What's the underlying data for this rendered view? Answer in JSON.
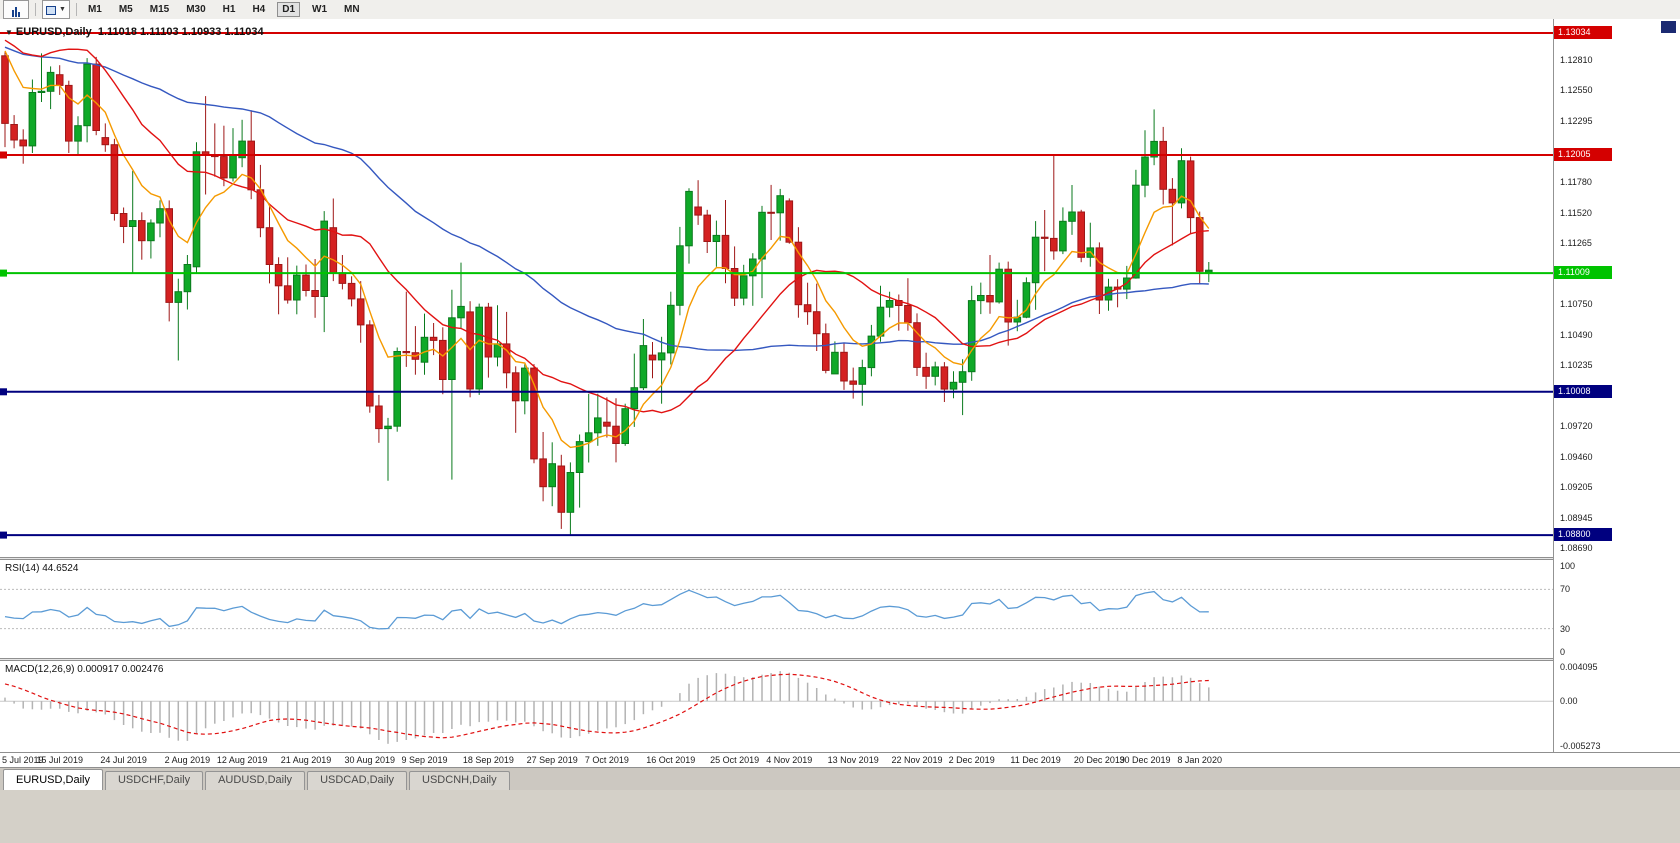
{
  "toolbar": {
    "icons": [
      "chart-window",
      "chart-style-dropdown"
    ],
    "timeframes": [
      "M1",
      "M5",
      "M15",
      "M30",
      "H1",
      "H4",
      "D1",
      "W1",
      "MN"
    ],
    "active_timeframe": "D1"
  },
  "chart": {
    "type": "candlestick",
    "title": "EURUSD,Daily",
    "ohlc": "1.11018 1.11103 1.10933 1.11034",
    "price_range": {
      "top": 1.13152,
      "bottom": 1.08615
    },
    "ticks": [
      "1.12810",
      "1.12550",
      "1.12295",
      "1.11780",
      "1.11520",
      "1.11265",
      "1.10750",
      "1.10490",
      "1.10235",
      "1.09720",
      "1.09460",
      "1.09205",
      "1.08945",
      "1.08690"
    ],
    "levels": [
      {
        "price": 1.13034,
        "label": "1.13034",
        "color": "#d40000",
        "handle": false
      },
      {
        "price": 1.12005,
        "label": "1.12005",
        "color": "#d40000"
      },
      {
        "price": 1.11009,
        "label": "1.11009",
        "color": "#00c300"
      },
      {
        "price": 1.10008,
        "label": "1.10008",
        "color": "#00007f"
      },
      {
        "price": 1.088,
        "label": "1.08800",
        "color": "#00007f"
      }
    ],
    "colors": {
      "bull": "#0fa928",
      "bull_border": "#0a7a1d",
      "bear": "#d42121",
      "bear_border": "#9e1717",
      "ma_fast": "#f59a00",
      "ma_mid": "#e11212",
      "ma_slow": "#3558c0"
    },
    "ma_periods": {
      "fast": 8,
      "mid": 20,
      "slow": 50
    },
    "history_closes": [
      1.12522,
      1.12532,
      1.12222,
      1.12762,
      1.13342,
      1.13122,
      1.13262,
      1.12882,
      1.12772,
      1.12072,
      1.12182,
      1.11932,
      1.12272,
      1.12942,
      1.13692,
      1.13992,
      1.13652,
      1.13702,
      1.13672,
      1.13732,
      1.12852,
      1.12852,
      1.12782,
      1.12832
    ],
    "candles": [
      [
        1.12842,
        1.12872,
        1.12072,
        1.12272
      ],
      [
        1.12262,
        1.12342,
        1.12062,
        1.12132
      ],
      [
        1.12132,
        1.12222,
        1.11932,
        1.12082
      ],
      [
        1.12082,
        1.12642,
        1.12022,
        1.12532
      ],
      [
        1.12532,
        1.12862,
        1.12452,
        1.12542
      ],
      [
        1.12542,
        1.12752,
        1.12392,
        1.12702
      ],
      [
        1.12682,
        1.12762,
        1.12512,
        1.12592
      ],
      [
        1.12592,
        1.12632,
        1.12022,
        1.12122
      ],
      [
        1.12122,
        1.12332,
        1.12012,
        1.12252
      ],
      [
        1.12252,
        1.12822,
        1.12112,
        1.12772
      ],
      [
        1.12772,
        1.12832,
        1.12172,
        1.12212
      ],
      [
        1.12152,
        1.12272,
        1.12032,
        1.12092
      ],
      [
        1.12092,
        1.12142,
        1.11452,
        1.11512
      ],
      [
        1.11512,
        1.11562,
        1.11262,
        1.11402
      ],
      [
        1.11402,
        1.11872,
        1.11012,
        1.11452
      ],
      [
        1.11452,
        1.11522,
        1.11122,
        1.11282
      ],
      [
        1.11282,
        1.11462,
        1.11132,
        1.11432
      ],
      [
        1.11432,
        1.11622,
        1.11312,
        1.11552
      ],
      [
        1.11552,
        1.11622,
        1.10602,
        1.10762
      ],
      [
        1.10762,
        1.10962,
        1.10272,
        1.10852
      ],
      [
        1.10852,
        1.11162,
        1.10702,
        1.11082
      ],
      [
        1.11062,
        1.12112,
        1.11012,
        1.12032
      ],
      [
        1.12032,
        1.12502,
        1.11672,
        1.12002
      ],
      [
        1.12002,
        1.12272,
        1.11822,
        1.11992
      ],
      [
        1.11992,
        1.12252,
        1.11742,
        1.11812
      ],
      [
        1.11812,
        1.12232,
        1.11782,
        1.12002
      ],
      [
        1.11982,
        1.12302,
        1.11902,
        1.12122
      ],
      [
        1.12122,
        1.12382,
        1.11632,
        1.11712
      ],
      [
        1.11712,
        1.11922,
        1.11312,
        1.11392
      ],
      [
        1.11392,
        1.11582,
        1.10922,
        1.11082
      ],
      [
        1.11082,
        1.11142,
        1.10662,
        1.10902
      ],
      [
        1.10902,
        1.11142,
        1.10752,
        1.10782
      ],
      [
        1.10782,
        1.11072,
        1.10662,
        1.10992
      ],
      [
        1.10992,
        1.11082,
        1.10812,
        1.10862
      ],
      [
        1.10862,
        1.11128,
        1.10632,
        1.10812
      ],
      [
        1.10812,
        1.11532,
        1.10512,
        1.11448
      ],
      [
        1.11392,
        1.11638,
        1.10942,
        1.11012
      ],
      [
        1.11012,
        1.11162,
        1.10872,
        1.10922
      ],
      [
        1.10922,
        1.10982,
        1.10728,
        1.10792
      ],
      [
        1.10792,
        1.10942,
        1.10422,
        1.10572
      ],
      [
        1.10572,
        1.10612,
        1.09832,
        1.09888
      ],
      [
        1.09888,
        1.09982,
        1.09578,
        1.09698
      ],
      [
        1.09698,
        1.09788,
        1.09258,
        1.09718
      ],
      [
        1.09718,
        1.10382,
        1.09672,
        1.10348
      ],
      [
        1.10348,
        1.10852,
        1.10218,
        1.10338
      ],
      [
        1.10338,
        1.10562,
        1.10152,
        1.10282
      ],
      [
        1.10258,
        1.10668,
        1.10152,
        1.10468
      ],
      [
        1.10468,
        1.10588,
        1.10318,
        1.10442
      ],
      [
        1.10442,
        1.10552,
        1.09988,
        1.10112
      ],
      [
        1.10112,
        1.10868,
        1.09268,
        1.10632
      ],
      [
        1.10632,
        1.11098,
        1.10542,
        1.10728
      ],
      [
        1.10682,
        1.10772,
        1.09962,
        1.10032
      ],
      [
        1.10032,
        1.10752,
        1.09982,
        1.10722
      ],
      [
        1.10722,
        1.10758,
        1.10128,
        1.10302
      ],
      [
        1.10302,
        1.10738,
        1.10222,
        1.10412
      ],
      [
        1.10412,
        1.10682,
        1.10038,
        1.10168
      ],
      [
        1.10168,
        1.10223,
        1.09662,
        1.09932
      ],
      [
        1.09932,
        1.10242,
        1.09818,
        1.10208
      ],
      [
        1.10208,
        1.10242,
        1.09405,
        1.09442
      ],
      [
        1.09442,
        1.09669,
        1.09085,
        1.09208
      ],
      [
        1.09208,
        1.09582,
        1.09043,
        1.09402
      ],
      [
        1.09382,
        1.09477,
        1.08852,
        1.08992
      ],
      [
        1.08992,
        1.09413,
        1.08793,
        1.09328
      ],
      [
        1.09328,
        1.09648,
        1.09032,
        1.09588
      ],
      [
        1.09588,
        1.09991,
        1.09412,
        1.09662
      ],
      [
        1.09662,
        1.09992,
        1.09553,
        1.09788
      ],
      [
        1.09752,
        1.09962,
        1.09623,
        1.09718
      ],
      [
        1.09718,
        1.09953,
        1.09413,
        1.09572
      ],
      [
        1.09572,
        1.09908,
        1.09553,
        1.09866
      ],
      [
        1.09866,
        1.1033,
        1.09712,
        1.10043
      ],
      [
        1.10043,
        1.10622,
        1.10023,
        1.10398
      ],
      [
        1.10318,
        1.10428,
        1.10122,
        1.10277
      ],
      [
        1.10277,
        1.10472,
        1.09908,
        1.10336
      ],
      [
        1.10336,
        1.10852,
        1.10238,
        1.10738
      ],
      [
        1.10738,
        1.11399,
        1.10653,
        1.11239
      ],
      [
        1.11239,
        1.11724,
        1.11089,
        1.11698
      ],
      [
        1.11567,
        1.11793,
        1.11416,
        1.11498
      ],
      [
        1.11498,
        1.11543,
        1.11179,
        1.11276
      ],
      [
        1.11276,
        1.11452,
        1.11062,
        1.11327
      ],
      [
        1.11327,
        1.11626,
        1.10923,
        1.11048
      ],
      [
        1.11048,
        1.11234,
        1.10732,
        1.10798
      ],
      [
        1.10798,
        1.11079,
        1.10738,
        1.10986
      ],
      [
        1.10986,
        1.11177,
        1.10733,
        1.11128
      ],
      [
        1.11128,
        1.11576,
        1.10798,
        1.11522
      ],
      [
        1.11522,
        1.11753,
        1.11288,
        1.11518
      ],
      [
        1.11518,
        1.11719,
        1.11282,
        1.11662
      ],
      [
        1.11618,
        1.11639,
        1.11257,
        1.1127
      ],
      [
        1.1127,
        1.11396,
        1.10633,
        1.10743
      ],
      [
        1.10743,
        1.10928,
        1.10573,
        1.10684
      ],
      [
        1.10684,
        1.10921,
        1.10352,
        1.10498
      ],
      [
        1.10498,
        1.10583,
        1.10164,
        1.10189
      ],
      [
        1.10159,
        1.10433,
        1.10158,
        1.10341
      ],
      [
        1.10341,
        1.10421,
        1.10024,
        1.10099
      ],
      [
        1.10099,
        1.10212,
        1.09951,
        1.10071
      ],
      [
        1.10071,
        1.10279,
        1.09891,
        1.10212
      ],
      [
        1.10212,
        1.10572,
        1.10139,
        1.10478
      ],
      [
        1.10478,
        1.10903,
        1.1043,
        1.10722
      ],
      [
        1.10722,
        1.10852,
        1.10636,
        1.10778
      ],
      [
        1.10778,
        1.10829,
        1.10523,
        1.10736
      ],
      [
        1.10736,
        1.10966,
        1.10523,
        1.10591
      ],
      [
        1.10591,
        1.10669,
        1.10141,
        1.10214
      ],
      [
        1.10214,
        1.10338,
        1.10033,
        1.10139
      ],
      [
        1.10139,
        1.10262,
        1.10062,
        1.10218
      ],
      [
        1.10218,
        1.10259,
        1.09922,
        1.10031
      ],
      [
        1.10031,
        1.10182,
        1.09953,
        1.10088
      ],
      [
        1.10088,
        1.10283,
        1.09812,
        1.10178
      ],
      [
        1.10178,
        1.10902,
        1.10101,
        1.10777
      ],
      [
        1.10777,
        1.10929,
        1.10663,
        1.1082
      ],
      [
        1.1082,
        1.11162,
        1.10667,
        1.10766
      ],
      [
        1.10766,
        1.11098,
        1.10752,
        1.11042
      ],
      [
        1.11042,
        1.11106,
        1.10398,
        1.10597
      ],
      [
        1.10597,
        1.10784,
        1.10519,
        1.10637
      ],
      [
        1.10637,
        1.10973,
        1.10629,
        1.10928
      ],
      [
        1.10928,
        1.11448,
        1.107,
        1.11312
      ],
      [
        1.11312,
        1.11541,
        1.11025,
        1.11302
      ],
      [
        1.11302,
        1.12003,
        1.11122,
        1.11196
      ],
      [
        1.11196,
        1.11563,
        1.11169,
        1.11446
      ],
      [
        1.11446,
        1.11752,
        1.11331,
        1.11524
      ],
      [
        1.11524,
        1.11543,
        1.11101,
        1.11142
      ],
      [
        1.11142,
        1.11434,
        1.11063,
        1.11222
      ],
      [
        1.11222,
        1.11268,
        1.10664,
        1.10782
      ],
      [
        1.10782,
        1.10962,
        1.10692,
        1.10891
      ],
      [
        1.10891,
        1.10958,
        1.10721,
        1.10874
      ],
      [
        1.10874,
        1.1107,
        1.1079,
        1.10968
      ],
      [
        1.10968,
        1.1188,
        1.10962,
        1.1175
      ],
      [
        1.1175,
        1.12213,
        1.11648,
        1.11988
      ],
      [
        1.11988,
        1.1239,
        1.11919,
        1.1212
      ],
      [
        1.1212,
        1.12242,
        1.11588,
        1.11716
      ],
      [
        1.11716,
        1.1181,
        1.11243,
        1.11601
      ],
      [
        1.11601,
        1.12062,
        1.11555,
        1.11957
      ],
      [
        1.11955,
        1.11992,
        1.11338,
        1.11477
      ],
      [
        1.11477,
        1.11528,
        1.10925,
        1.11024
      ],
      [
        1.11018,
        1.11103,
        1.10933,
        1.11034
      ]
    ],
    "date_labels": [
      {
        "t": "5 Jul 2019",
        "i": 0
      },
      {
        "t": "15 Jul 2019",
        "i": 6
      },
      {
        "t": "24 Jul 2019",
        "i": 13
      },
      {
        "t": "2 Aug 2019",
        "i": 20
      },
      {
        "t": "12 Aug 2019",
        "i": 26
      },
      {
        "t": "21 Aug 2019",
        "i": 33
      },
      {
        "t": "30 Aug 2019",
        "i": 40
      },
      {
        "t": "9 Sep 2019",
        "i": 46
      },
      {
        "t": "18 Sep 2019",
        "i": 53
      },
      {
        "t": "27 Sep 2019",
        "i": 60
      },
      {
        "t": "7 Oct 2019",
        "i": 66
      },
      {
        "t": "16 Oct 2019",
        "i": 73
      },
      {
        "t": "25 Oct 2019",
        "i": 80
      },
      {
        "t": "4 Nov 2019",
        "i": 86
      },
      {
        "t": "13 Nov 2019",
        "i": 93
      },
      {
        "t": "22 Nov 2019",
        "i": 100
      },
      {
        "t": "2 Dec 2019",
        "i": 106
      },
      {
        "t": "11 Dec 2019",
        "i": 113
      },
      {
        "t": "20 Dec 2019",
        "i": 120
      },
      {
        "t": "30 Dec 2019",
        "i": 125
      },
      {
        "t": "8 Jan 2020",
        "i": 131
      }
    ]
  },
  "rsi": {
    "label": "RSI(14) 44.6524",
    "period": 14,
    "scale": [
      "100",
      "70",
      "30",
      "0"
    ],
    "levels": [
      70,
      30
    ],
    "color": "#5b9bd5"
  },
  "macd": {
    "label": "MACD(12,26,9) 0.000917 0.002476",
    "fast": 12,
    "slow": 26,
    "signal": 9,
    "scale": [
      "0.004095",
      "0.00",
      "-0.005273"
    ],
    "range": [
      -0.00575,
      0.00455
    ],
    "hist_color": "#b3b3b3",
    "signal_color": "#e01010"
  },
  "tabs": [
    {
      "label": "EURUSD,Daily",
      "active": true
    },
    {
      "label": "USDCHF,Daily",
      "active": false
    },
    {
      "label": "AUDUSD,Daily",
      "active": false
    },
    {
      "label": "USDCAD,Daily",
      "active": false
    },
    {
      "label": "USDCNH,Daily",
      "active": false
    }
  ]
}
